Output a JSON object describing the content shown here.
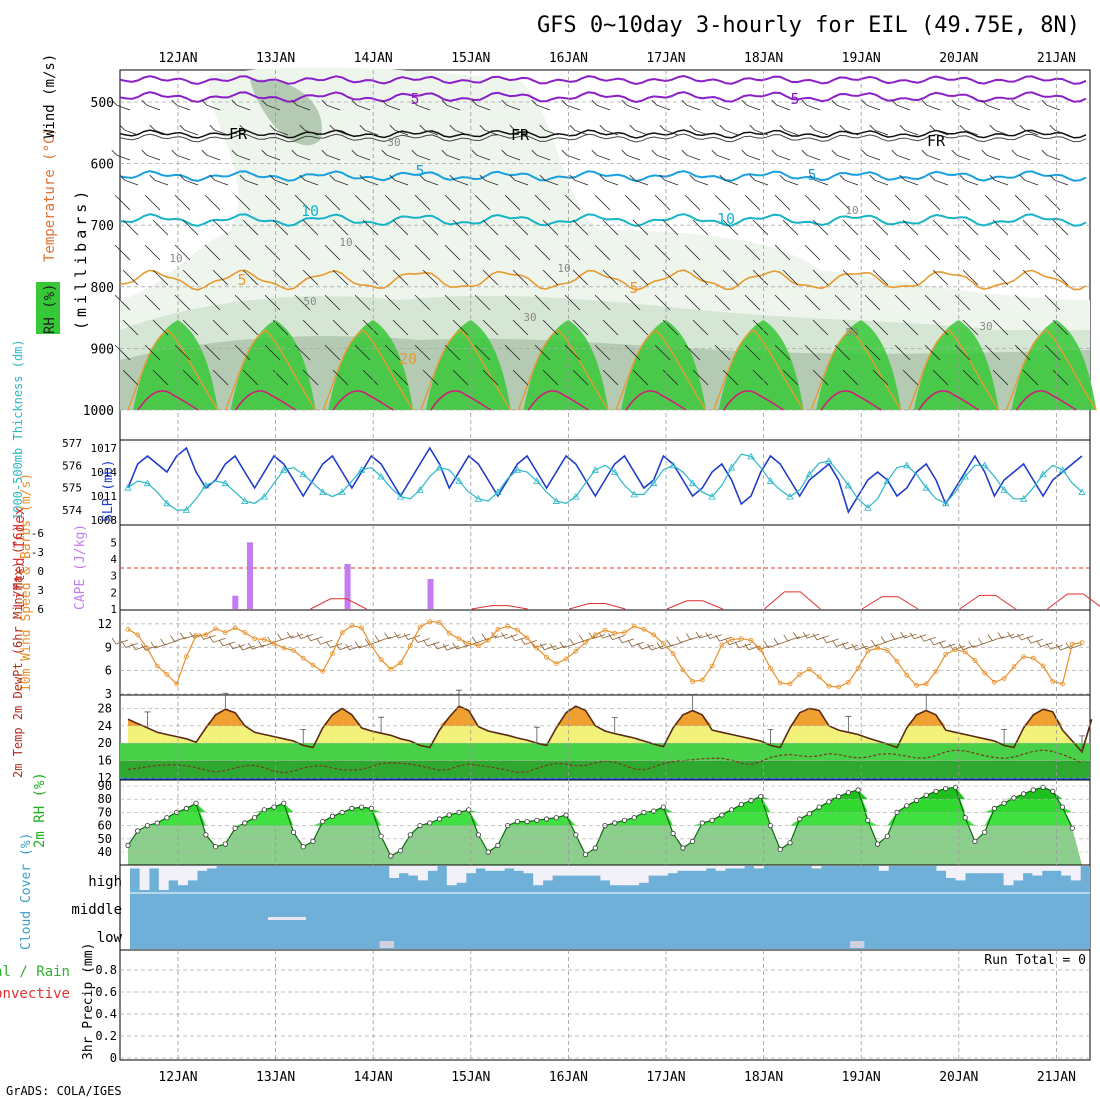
{
  "title": "GFS 0~10day 3-hourly for EIL (49.75E, 8N)",
  "credit": "GrADS: COLA/IGES",
  "dates": [
    "12JAN",
    "13JAN",
    "14JAN",
    "15JAN",
    "16JAN",
    "17JAN",
    "18JAN",
    "19JAN",
    "20JAN",
    "21JAN"
  ],
  "colors": {
    "rh_fill": [
      "#eef5ec",
      "#d6e6d4",
      "#b4cab2",
      "#37c837"
    ],
    "temp_lines": "#e89a30",
    "temp_purple": "#8a20c8",
    "temp_blue": "#1aa0e0",
    "temp_cyan": "#17b4c8",
    "slp": "#1f3cc8",
    "thickness": "#2ab8c8",
    "cape": "#c47cf0",
    "lifted": "#e03030",
    "wind10": "#e8902a",
    "tmax_fill": "#f0a030",
    "tmid_fill": "#f2f27a",
    "dew_fill": "#38c838",
    "rh2m": "#30d830",
    "cloud": "#6fb0d8"
  },
  "chart_data": [
    {
      "type": "heatmap",
      "panel": "upper-air",
      "ylabel": "(millibars)",
      "legend_labels": [
        "RH (%)",
        "Temperature (°C)",
        "Wind (m/s)"
      ],
      "y_ticks": [
        500,
        600,
        700,
        800,
        900,
        1000
      ],
      "contour_labels": {
        "temperature": [
          "5",
          "5",
          "FR",
          "FR",
          "FR",
          "5",
          "5",
          "10",
          "10",
          "5",
          "5",
          "20"
        ],
        "rh": [
          "30",
          "10",
          "10",
          "10",
          "10",
          "50",
          "30",
          "50",
          "30"
        ]
      }
    },
    {
      "type": "line",
      "panel": "slp-thickness",
      "ylabel_left": "1000-500mb Thickness (dm)",
      "ylabel_right": "SLP (mb)",
      "y_ticks_left": [
        574,
        575,
        576,
        577
      ],
      "y_ticks_right": [
        1008,
        1011,
        1014,
        1017
      ],
      "series": [
        {
          "name": "SLP",
          "values": [
            1012,
            1015,
            1016,
            1015,
            1014,
            1016,
            1017,
            1014,
            1012,
            1013,
            1015,
            1016,
            1014,
            1012,
            1014,
            1016,
            1015,
            1013,
            1011,
            1013,
            1015,
            1016,
            1014,
            1012,
            1014,
            1016,
            1015,
            1013,
            1011,
            1013,
            1015,
            1017,
            1015,
            1012,
            1014,
            1016,
            1015,
            1013,
            1011,
            1013,
            1015,
            1016,
            1014,
            1012,
            1014,
            1016,
            1015,
            1013,
            1011,
            1013,
            1015,
            1016,
            1014,
            1012,
            1013,
            1016,
            1015,
            1013,
            1011,
            1012,
            1014,
            1015,
            1013,
            1010,
            1011,
            1014,
            1016,
            1015,
            1013,
            1011,
            1013,
            1014,
            1015,
            1013,
            1009,
            1011,
            1013,
            1014,
            1013,
            1011,
            1012,
            1014,
            1015,
            1013,
            1010,
            1012,
            1014,
            1016,
            1014,
            1011,
            1013,
            1014,
            1015,
            1013,
            1011,
            1013,
            1014,
            1015,
            1016
          ]
        },
        {
          "name": "Thickness",
          "values": [
            575,
            575.3,
            575.2,
            574.8,
            574.3,
            574,
            574,
            574.5,
            575.1,
            575.3,
            575.2,
            574.8,
            574.4,
            574.3,
            574.6,
            575.2,
            575.8,
            575.9,
            575.6,
            575.2,
            574.8,
            574.6,
            574.8,
            575.3,
            575.8,
            575.9,
            575.5,
            575,
            574.6,
            574.5,
            574.9,
            575.5,
            575.9,
            575.8,
            575.3,
            574.8,
            574.5,
            574.4,
            574.8,
            575.4,
            575.8,
            575.7,
            575.3,
            574.8,
            574.4,
            574.3,
            574.6,
            575.2,
            575.8,
            576,
            575.7,
            575.1,
            574.7,
            574.7,
            575.2,
            575.8,
            576,
            575.7,
            575.2,
            574.8,
            574.6,
            575.1,
            575.9,
            576.5,
            576.4,
            575.9,
            575.3,
            574.9,
            574.6,
            574.9,
            575.6,
            576.1,
            576.2,
            575.7,
            575.1,
            574.5,
            574.1,
            574.5,
            575.3,
            575.9,
            576,
            575.6,
            575,
            574.5,
            574.3,
            574.8,
            575.5,
            576,
            576,
            575.5,
            574.9,
            574.5,
            574.5,
            575,
            575.6,
            576,
            575.8,
            575.2,
            574.8
          ]
        }
      ]
    },
    {
      "type": "bar",
      "panel": "cape-lifted",
      "ylabel_left": "Lifted Index",
      "ylabel_right": "CAPE (J/kg)",
      "y_ticks_left": [
        "6",
        "3",
        "0",
        "-3",
        "-6"
      ],
      "y_ticks_right": [
        1,
        2,
        3,
        4,
        5
      ],
      "cape": [
        {
          "t": 0.7,
          "value": 1.8
        },
        {
          "t": 0.85,
          "value": 5.0
        },
        {
          "t": 1.85,
          "value": 3.7
        },
        {
          "t": 2.7,
          "value": 2.8
        }
      ],
      "lifted_index": [
        {
          "t": 1.85,
          "value": 4.5
        },
        {
          "t": 3.5,
          "value": 5.5
        },
        {
          "t": 4.5,
          "value": 5.2
        },
        {
          "t": 5.5,
          "value": 4.8
        },
        {
          "t": 6.5,
          "value": 3.5
        },
        {
          "t": 7.5,
          "value": 4.2
        },
        {
          "t": 8.5,
          "value": 4.0
        },
        {
          "t": 9.4,
          "value": 3.8
        }
      ]
    },
    {
      "type": "line",
      "panel": "wind10m",
      "ylabel": "10m Wind Speed & Barbs (m/s)",
      "y_ticks": [
        3,
        6,
        9,
        12
      ],
      "series": [
        {
          "name": "10m Wind Speed",
          "values": [
            11.3,
            10.6,
            8.8,
            6.6,
            5.5,
            4.3,
            7.8,
            10.5,
            10.6,
            11.4,
            10.9,
            11.5,
            10.9,
            10.1,
            10,
            9.5,
            8.9,
            8.6,
            7.6,
            6.7,
            5.9,
            8.2,
            10.9,
            11.8,
            11.5,
            9.2,
            7.4,
            6.2,
            7,
            9.2,
            11.6,
            12.3,
            12.2,
            10.8,
            10.1,
            9.5,
            9.2,
            9.9,
            11.3,
            11.7,
            11.2,
            10.2,
            8.9,
            7.7,
            6.9,
            7.5,
            8.5,
            9.6,
            10.6,
            11.2,
            10.8,
            10.9,
            11.7,
            11.3,
            10.6,
            9.5,
            8.2,
            6.1,
            4.6,
            4.8,
            6.6,
            9.3,
            10,
            10.1,
            9.9,
            8.7,
            6.3,
            4.4,
            4.3,
            5.5,
            6.2,
            5.2,
            4,
            3.9,
            4.5,
            6.3,
            8.5,
            8.9,
            8.6,
            7.2,
            5.4,
            4.1,
            4.3,
            5.9,
            8.1,
            8.7,
            8.4,
            7.3,
            5.7,
            4.5,
            5,
            6.5,
            7.8,
            7.6,
            6.6,
            4.6,
            4.3,
            9.4,
            9.6
          ]
        }
      ]
    },
    {
      "type": "area",
      "panel": "temp2m",
      "ylabel": "2m Temp 2m DewPt (6hr Min/Max) (°C)",
      "y_ticks": [
        12,
        16,
        20,
        24,
        28
      ],
      "series": [
        {
          "name": "2m Temp",
          "values": [
            25.5,
            24.5,
            23.5,
            22.5,
            22,
            21.5,
            21,
            20.2,
            23.5,
            26.5,
            27.8,
            27,
            24,
            22.5,
            22,
            21.5,
            21,
            20.5,
            19.5,
            19,
            23.5,
            26.5,
            28,
            26.5,
            23.5,
            22.8,
            22.3,
            21.8,
            21,
            20.5,
            19.5,
            19,
            23,
            26,
            28.5,
            27.5,
            23.8,
            22.8,
            22.3,
            21.8,
            21.2,
            20.7,
            20,
            19.5,
            23.5,
            27,
            28.5,
            27.5,
            24,
            22.8,
            22.2,
            21.7,
            21.2,
            20.5,
            19.8,
            19.2,
            23.5,
            26.5,
            27.5,
            26.5,
            23,
            22.5,
            22,
            21.5,
            21,
            20.5,
            19.5,
            19,
            23.5,
            27,
            28,
            27.5,
            24,
            23,
            22.5,
            22,
            21.2,
            20.5,
            19.8,
            19,
            23.5,
            26.5,
            27.5,
            26.5,
            23,
            22.5,
            22,
            21.5,
            21,
            20.5,
            19.5,
            19,
            23.5,
            26.5,
            27.8,
            27.2,
            23,
            20.5,
            18,
            25.5
          ]
        },
        {
          "name": "2m DewPt",
          "values": [
            14,
            14.2,
            14.6,
            14.9,
            15,
            15,
            14.8,
            14.4,
            13.8,
            13.4,
            13.7,
            14.3,
            14.8,
            14.9,
            14.4,
            13.5,
            13.2,
            13.6,
            14.3,
            14.7,
            14.8,
            14.3,
            13.9,
            13.8,
            14,
            14.6,
            15.3,
            15.5,
            15.4,
            15.2,
            14.8,
            14.3,
            13.8,
            14,
            14.8,
            15.2,
            14.9,
            14.6,
            14.2,
            13.8,
            13.3,
            13.4,
            14.2,
            14.9,
            15.4,
            15.2,
            14.8,
            14.9,
            15.5,
            15.9,
            15.6,
            14.9,
            14.1,
            13.9,
            14.5,
            15.3,
            15.8,
            16,
            16.2,
            16.4,
            16.5,
            16.5,
            16.1,
            15.4,
            15.1,
            15.8,
            16.7,
            17.2,
            17.4,
            17.1,
            16.9,
            17.1,
            17.6,
            17.4,
            16.9,
            16.6,
            16.8,
            17.4,
            17.6,
            17.4,
            17,
            16.6,
            16.6,
            17.2,
            18,
            18.4,
            18.2,
            17.7,
            17.1,
            16.7,
            16.5,
            16.8,
            17.5,
            18.1,
            18.4,
            18.1,
            17.4,
            16.5,
            15.4
          ]
        }
      ]
    },
    {
      "type": "area",
      "panel": "rh2m",
      "ylabel": "2m RH (%)",
      "y_ticks": [
        40,
        50,
        60,
        70,
        80,
        90
      ],
      "series": [
        {
          "name": "2m RH",
          "values": [
            45,
            56,
            60,
            62,
            66,
            70,
            73,
            77,
            53,
            44,
            46,
            58,
            62,
            66,
            72,
            74,
            77,
            55,
            44,
            48,
            63,
            67,
            70,
            73,
            74,
            73,
            52,
            37,
            41,
            53,
            60,
            62,
            65,
            68,
            70,
            72,
            53,
            40,
            45,
            60,
            63,
            63,
            64,
            65,
            66,
            68,
            53,
            38,
            43,
            60,
            62,
            64,
            66,
            70,
            71,
            74,
            54,
            43,
            48,
            62,
            64,
            68,
            72,
            76,
            79,
            82,
            60,
            42,
            47,
            65,
            69,
            74,
            78,
            82,
            85,
            87,
            64,
            46,
            52,
            70,
            75,
            79,
            83,
            86,
            88,
            89,
            66,
            48,
            55,
            73,
            77,
            81,
            84,
            87,
            89,
            86,
            74,
            58
          ]
        }
      ]
    },
    {
      "type": "bar",
      "panel": "cloud-cover",
      "ylabel": "Cloud Cover (%)",
      "layer_labels": [
        "high",
        "middle",
        "low"
      ],
      "series": [
        {
          "name": "high",
          "values": [
            10,
            100,
            10,
            100,
            60,
            80,
            60,
            20,
            10,
            0,
            0,
            0,
            0,
            0,
            0,
            0,
            0,
            0,
            0,
            0,
            0,
            0,
            0,
            0,
            0,
            0,
            0,
            50,
            30,
            40,
            60,
            20,
            0,
            80,
            70,
            30,
            10,
            20,
            20,
            10,
            20,
            30,
            80,
            60,
            40,
            40,
            40,
            40,
            40,
            60,
            80,
            80,
            80,
            70,
            40,
            40,
            30,
            20,
            20,
            20,
            10,
            20,
            10,
            10,
            0,
            10,
            0,
            0,
            0,
            0,
            0,
            10,
            0,
            0,
            0,
            0,
            0,
            0,
            20,
            0,
            0,
            0,
            0,
            0,
            20,
            50,
            60,
            30,
            30,
            30,
            30,
            80,
            60,
            30,
            40,
            20,
            20,
            40,
            60,
            0
          ]
        },
        {
          "name": "middle",
          "values": [
            0,
            0,
            0,
            0,
            0,
            0,
            0,
            0,
            0,
            0,
            0,
            0,
            0,
            0,
            0,
            0,
            0,
            0,
            0,
            0,
            0,
            0,
            0,
            0,
            0,
            0,
            0,
            0,
            0,
            0,
            0,
            0,
            0,
            0,
            0,
            0,
            0,
            0,
            0,
            0,
            0,
            0,
            0,
            0,
            0,
            0,
            0,
            0,
            0,
            0,
            0,
            0,
            0,
            0,
            0,
            0,
            0,
            0,
            0,
            0,
            0,
            0,
            0,
            0,
            0,
            0,
            0,
            0,
            0,
            0,
            0,
            0,
            0,
            0,
            0,
            0,
            0,
            0,
            0,
            0,
            0,
            0,
            0,
            0,
            0,
            0,
            0,
            0,
            0,
            0,
            0,
            0,
            0,
            0,
            0,
            0,
            0,
            0,
            0,
            0
          ]
        },
        {
          "name": "low",
          "values": [
            0,
            0,
            0,
            0,
            0,
            0,
            0,
            0,
            0,
            0,
            0,
            0,
            0,
            0,
            0,
            0,
            0,
            0,
            0,
            0,
            0,
            0,
            0,
            0,
            0,
            0,
            30,
            0,
            0,
            0,
            0,
            0,
            0,
            0,
            0,
            0,
            0,
            0,
            0,
            0,
            0,
            0,
            0,
            0,
            0,
            0,
            0,
            0,
            0,
            0,
            0,
            0,
            0,
            0,
            0,
            0,
            0,
            0,
            0,
            0,
            0,
            0,
            0,
            0,
            0,
            0,
            0,
            0,
            0,
            0,
            0,
            0,
            0,
            0,
            0,
            20,
            0,
            0,
            0,
            0,
            0,
            0,
            0,
            0,
            0,
            0,
            0,
            0,
            0,
            0,
            0,
            0,
            0,
            0,
            0,
            0,
            0,
            0,
            0,
            0
          ]
        }
      ]
    },
    {
      "type": "bar",
      "panel": "precip",
      "ylabel": "3hr Precip (mm)",
      "legend_labels": [
        "Total / Rain",
        "Convective"
      ],
      "y_ticks": [
        0,
        0.2,
        0.4,
        0.6,
        0.8
      ],
      "run_total": "Run Total = 0",
      "values": []
    }
  ]
}
